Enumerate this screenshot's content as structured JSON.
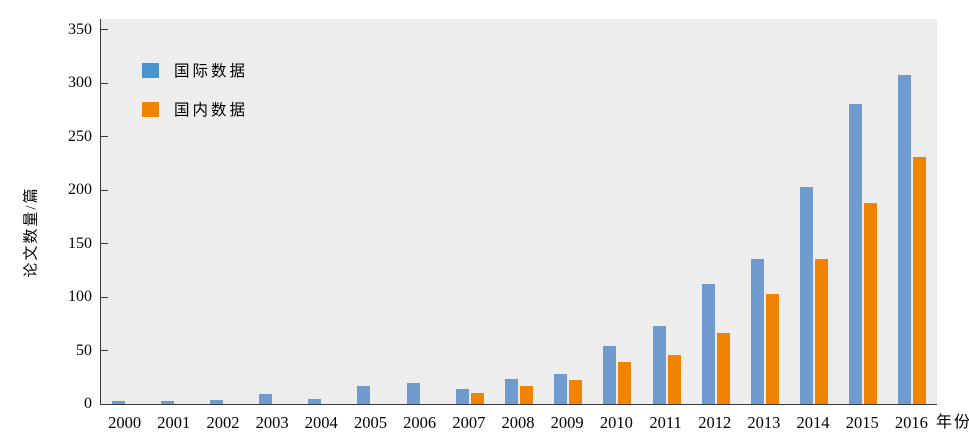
{
  "chart_data": {
    "type": "bar",
    "title": "",
    "xlabel": "年份",
    "ylabel": "论文数量/篇",
    "categories": [
      "2000",
      "2001",
      "2002",
      "2003",
      "2004",
      "2005",
      "2006",
      "2007",
      "2008",
      "2009",
      "2010",
      "2011",
      "2012",
      "2013",
      "2014",
      "2015",
      "2016"
    ],
    "series": [
      {
        "name": "国际数据",
        "color": "#6F9BCE",
        "legend_color": "#4A94CE",
        "values": [
          3,
          3,
          4,
          9,
          5,
          17,
          20,
          14,
          23,
          28,
          54,
          73,
          112,
          136,
          203,
          281,
          308
        ]
      },
      {
        "name": "国内数据",
        "color": "#F08300",
        "legend_color": "#F08300",
        "values": [
          0,
          0,
          0,
          0,
          0,
          0,
          0,
          10,
          17,
          22,
          39,
          46,
          66,
          103,
          136,
          188,
          231
        ]
      }
    ],
    "ylim": [
      0,
      360
    ],
    "yticks": [
      0,
      50,
      100,
      150,
      200,
      250,
      300,
      350
    ],
    "grid": false,
    "legend_position": "upper-left-inside",
    "plot_bg": "#EEEDEE",
    "page_bg": "#FFFFFF",
    "axis_color": "#3A3A3A",
    "text_color": "#000000"
  }
}
